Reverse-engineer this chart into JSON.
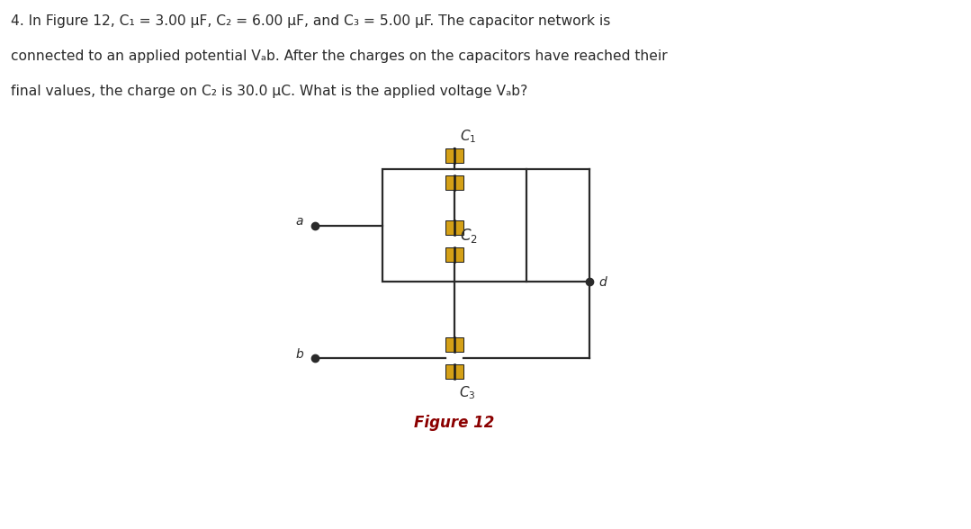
{
  "bg_color": "#ffffff",
  "line_color": "#2a2a2a",
  "cap_plate_color": "#d4a017",
  "cap_line_color": "#1a1a1a",
  "dot_color": "#2a2a2a",
  "label_color": "#2a2a2a",
  "figure_label_color": "#8B0000",
  "text_color": "#2a2a2a",
  "text_lines": [
    "4. In Figure 12, C₁ = 3.00 μF, C₂ = 6.00 μF, and C₃ = 5.00 μF. The capacitor network is",
    "connected to an applied potential Vₐb. After the charges on the capacitors have reached their",
    "final values, the charge on C₂ is 30.0 μC. What is the applied voltage Vₐb?"
  ]
}
